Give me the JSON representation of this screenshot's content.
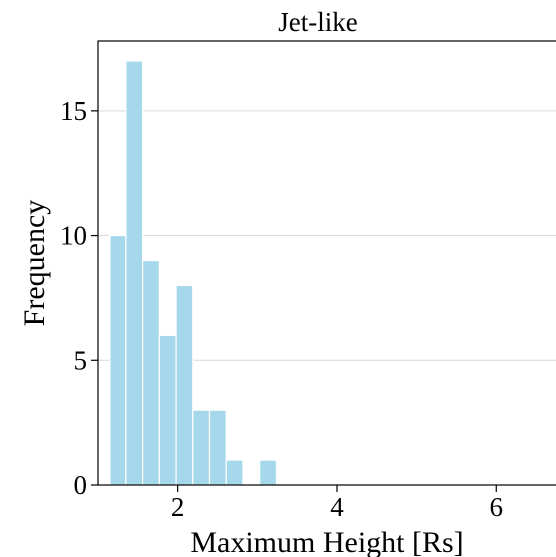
{
  "chart_data": {
    "type": "bar",
    "title": "Jet-like",
    "xlabel": "Maximum Height [Rs]",
    "ylabel": "Frequency",
    "x_range": [
      1.0,
      6.8
    ],
    "y_range": [
      0,
      17.8
    ],
    "x_ticks": [
      2,
      4,
      6
    ],
    "y_ticks": [
      0,
      5,
      10,
      15
    ],
    "grid": "horizontal",
    "bar_color": "#a6d8ec",
    "bar_edge_color": "#ffffff",
    "bins": [
      {
        "x0": 1.15,
        "x1": 1.35,
        "count": 10
      },
      {
        "x0": 1.35,
        "x1": 1.56,
        "count": 17
      },
      {
        "x0": 1.56,
        "x1": 1.77,
        "count": 9
      },
      {
        "x0": 1.77,
        "x1": 1.98,
        "count": 6
      },
      {
        "x0": 1.98,
        "x1": 2.19,
        "count": 8
      },
      {
        "x0": 2.19,
        "x1": 2.4,
        "count": 3
      },
      {
        "x0": 2.4,
        "x1": 2.61,
        "count": 3
      },
      {
        "x0": 2.61,
        "x1": 2.82,
        "count": 1
      },
      {
        "x0": 2.82,
        "x1": 3.03,
        "count": 0
      },
      {
        "x0": 3.03,
        "x1": 3.24,
        "count": 1
      }
    ]
  }
}
